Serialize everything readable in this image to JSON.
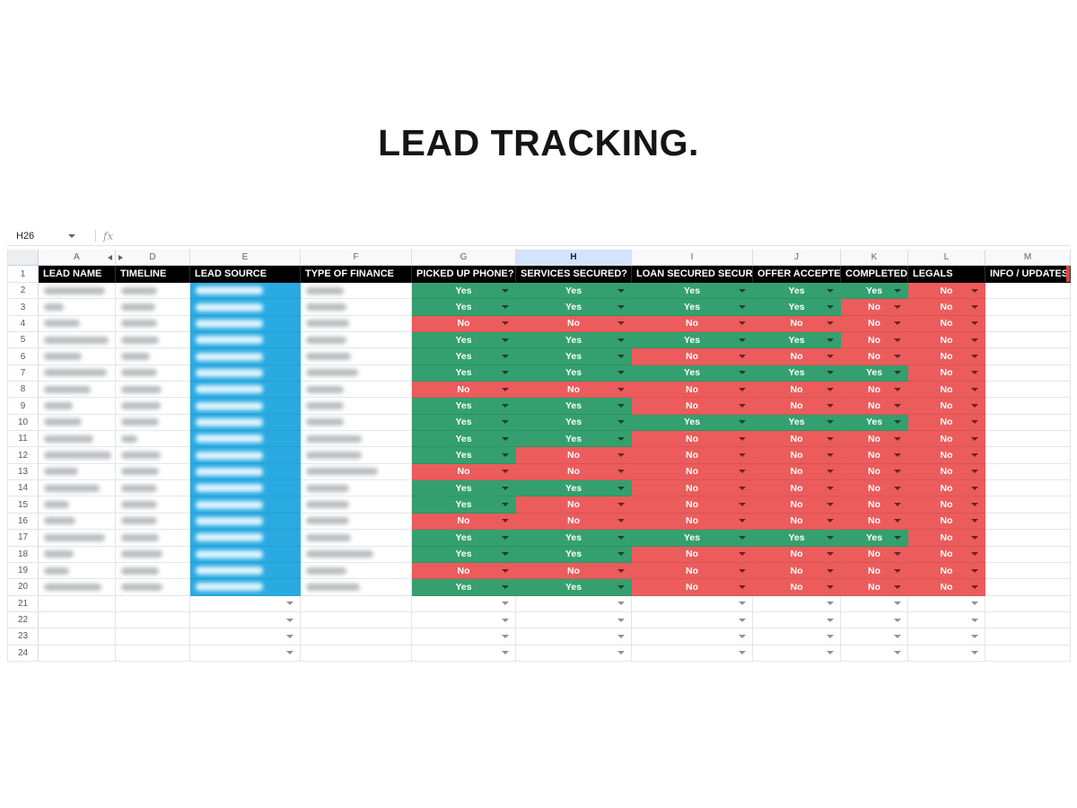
{
  "page": {
    "title": "LEAD TRACKING."
  },
  "formula_bar": {
    "cell_ref": "H26",
    "fx_label": "fx"
  },
  "colors": {
    "green": "#34a06f",
    "red": "#ec5c5c",
    "blue": "#29abe2",
    "header_bg": "#000000",
    "selected_col_bg": "#d3e3fd",
    "header_edge_red": "#dc4437"
  },
  "grid": {
    "columns": [
      {
        "letter": "A",
        "selected": false
      },
      {
        "letter": "D",
        "selected": false
      },
      {
        "letter": "E",
        "selected": false
      },
      {
        "letter": "F",
        "selected": false
      },
      {
        "letter": "G",
        "selected": false
      },
      {
        "letter": "H",
        "selected": true
      },
      {
        "letter": "I",
        "selected": false
      },
      {
        "letter": "J",
        "selected": false
      },
      {
        "letter": "K",
        "selected": false
      },
      {
        "letter": "L",
        "selected": false
      },
      {
        "letter": "M",
        "selected": false
      }
    ],
    "header_row": {
      "row_num": "1",
      "labels": [
        "LEAD NAME",
        "TIMELINE",
        "LEAD SOURCE",
        "TYPE OF FINANCE",
        "PICKED UP PHONE?",
        "SERVICES SECURED?",
        "LOAN SECURED SECURI",
        "OFFER ACCEPTE",
        "COMPLETED",
        "LEGALS",
        "INFO / UPDATES"
      ]
    },
    "data_rows": [
      {
        "num": "2",
        "name_w": 68,
        "time_w": 40,
        "src_w": 75,
        "fin_w": 42,
        "values": [
          "Yes",
          "Yes",
          "Yes",
          "Yes",
          "Yes",
          "No"
        ]
      },
      {
        "num": "3",
        "name_w": 22,
        "time_w": 38,
        "src_w": 75,
        "fin_w": 45,
        "values": [
          "Yes",
          "Yes",
          "Yes",
          "Yes",
          "No",
          "No"
        ]
      },
      {
        "num": "4",
        "name_w": 40,
        "time_w": 40,
        "src_w": 75,
        "fin_w": 48,
        "values": [
          "No",
          "No",
          "No",
          "No",
          "No",
          "No"
        ]
      },
      {
        "num": "5",
        "name_w": 72,
        "time_w": 42,
        "src_w": 75,
        "fin_w": 45,
        "values": [
          "Yes",
          "Yes",
          "Yes",
          "Yes",
          "No",
          "No"
        ]
      },
      {
        "num": "6",
        "name_w": 42,
        "time_w": 32,
        "src_w": 75,
        "fin_w": 50,
        "values": [
          "Yes",
          "Yes",
          "No",
          "No",
          "No",
          "No"
        ]
      },
      {
        "num": "7",
        "name_w": 70,
        "time_w": 40,
        "src_w": 75,
        "fin_w": 58,
        "values": [
          "Yes",
          "Yes",
          "Yes",
          "Yes",
          "Yes",
          "No"
        ]
      },
      {
        "num": "8",
        "name_w": 52,
        "time_w": 45,
        "src_w": 75,
        "fin_w": 42,
        "values": [
          "No",
          "No",
          "No",
          "No",
          "No",
          "No"
        ]
      },
      {
        "num": "9",
        "name_w": 32,
        "time_w": 44,
        "src_w": 75,
        "fin_w": 42,
        "values": [
          "Yes",
          "Yes",
          "No",
          "No",
          "No",
          "No"
        ]
      },
      {
        "num": "10",
        "name_w": 42,
        "time_w": 42,
        "src_w": 75,
        "fin_w": 42,
        "values": [
          "Yes",
          "Yes",
          "Yes",
          "Yes",
          "Yes",
          "No"
        ]
      },
      {
        "num": "11",
        "name_w": 55,
        "time_w": 18,
        "src_w": 75,
        "fin_w": 62,
        "values": [
          "Yes",
          "Yes",
          "No",
          "No",
          "No",
          "No"
        ]
      },
      {
        "num": "12",
        "name_w": 75,
        "time_w": 44,
        "src_w": 75,
        "fin_w": 62,
        "values": [
          "Yes",
          "No",
          "No",
          "No",
          "No",
          "No"
        ]
      },
      {
        "num": "13",
        "name_w": 38,
        "time_w": 42,
        "src_w": 75,
        "fin_w": 80,
        "values": [
          "No",
          "No",
          "No",
          "No",
          "No",
          "No"
        ]
      },
      {
        "num": "14",
        "name_w": 62,
        "time_w": 40,
        "src_w": 75,
        "fin_w": 48,
        "values": [
          "Yes",
          "Yes",
          "No",
          "No",
          "No",
          "No"
        ]
      },
      {
        "num": "15",
        "name_w": 28,
        "time_w": 40,
        "src_w": 75,
        "fin_w": 48,
        "values": [
          "Yes",
          "No",
          "No",
          "No",
          "No",
          "No"
        ]
      },
      {
        "num": "16",
        "name_w": 35,
        "time_w": 40,
        "src_w": 75,
        "fin_w": 48,
        "values": [
          "No",
          "No",
          "No",
          "No",
          "No",
          "No"
        ]
      },
      {
        "num": "17",
        "name_w": 68,
        "time_w": 42,
        "src_w": 75,
        "fin_w": 50,
        "values": [
          "Yes",
          "Yes",
          "Yes",
          "Yes",
          "Yes",
          "No"
        ]
      },
      {
        "num": "18",
        "name_w": 33,
        "time_w": 46,
        "src_w": 75,
        "fin_w": 75,
        "values": [
          "Yes",
          "Yes",
          "No",
          "No",
          "No",
          "No"
        ]
      },
      {
        "num": "19",
        "name_w": 28,
        "time_w": 42,
        "src_w": 75,
        "fin_w": 45,
        "values": [
          "No",
          "No",
          "No",
          "No",
          "No",
          "No"
        ]
      },
      {
        "num": "20",
        "name_w": 64,
        "time_w": 46,
        "src_w": 75,
        "fin_w": 60,
        "values": [
          "Yes",
          "Yes",
          "No",
          "No",
          "No",
          "No"
        ]
      }
    ],
    "empty_rows": [
      {
        "num": "21"
      },
      {
        "num": "22"
      },
      {
        "num": "23"
      },
      {
        "num": "24"
      }
    ]
  }
}
